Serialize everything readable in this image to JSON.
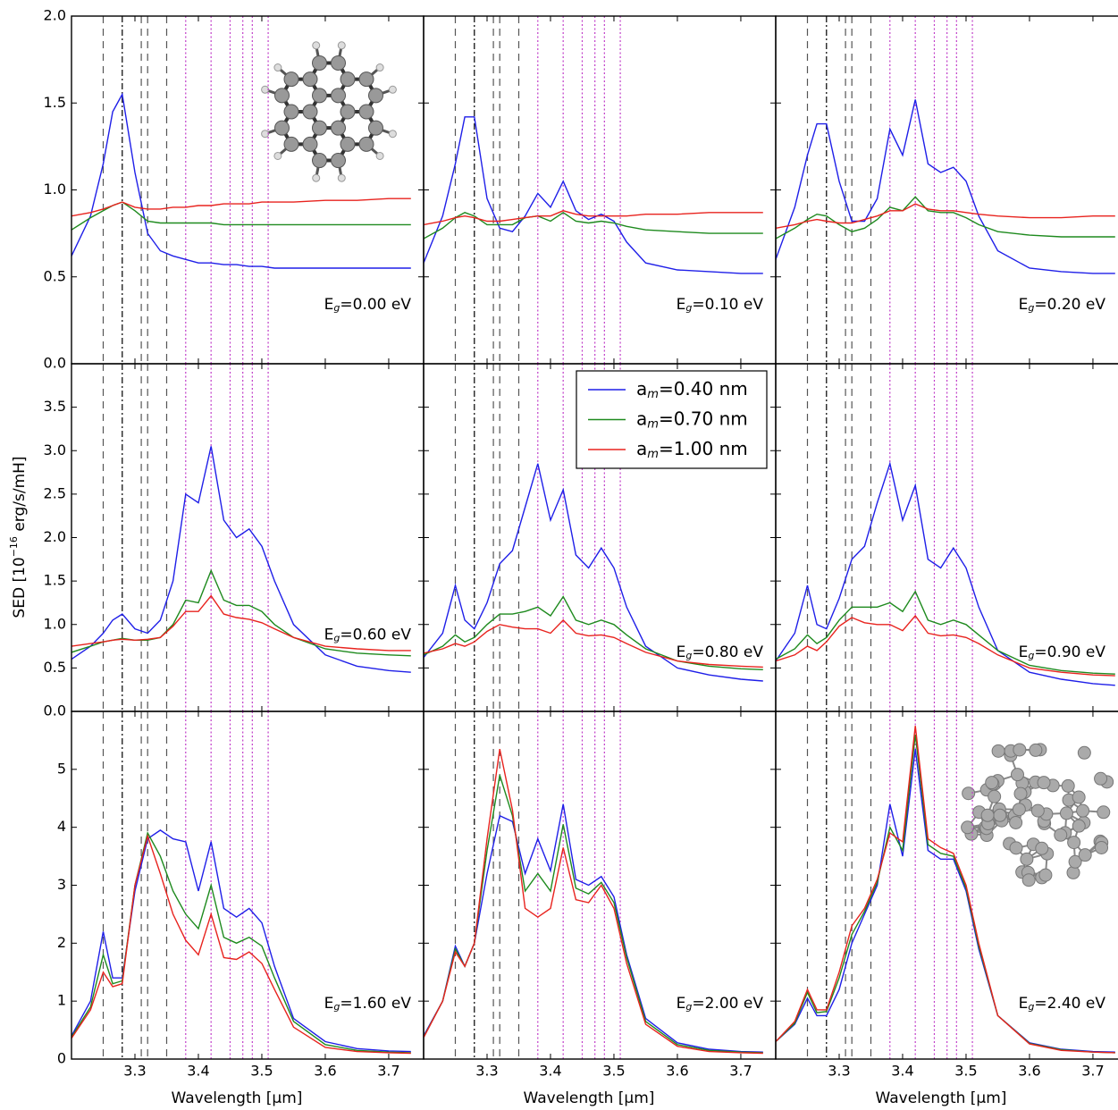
{
  "chart_data": {
    "type": "line",
    "x_label": "Wavelength [μm]",
    "y_label": [
      "SED [10",
      "−16",
      " erg/s/mH]"
    ],
    "xlim": [
      3.2,
      3.755
    ],
    "xticks": [
      3.3,
      3.4,
      3.5,
      3.6,
      3.7
    ],
    "x": [
      3.2,
      3.23,
      3.25,
      3.265,
      3.28,
      3.3,
      3.32,
      3.34,
      3.36,
      3.38,
      3.4,
      3.42,
      3.44,
      3.46,
      3.48,
      3.5,
      3.52,
      3.55,
      3.6,
      3.65,
      3.7,
      3.735
    ],
    "series": [
      {
        "name": [
          "a",
          "m",
          "=0.40 nm"
        ],
        "color": "#1f1fe8"
      },
      {
        "name": [
          "a",
          "m",
          "=0.70 nm"
        ],
        "color": "#1e8a1e"
      },
      {
        "name": [
          "a",
          "m",
          "=1.00 nm"
        ],
        "color": "#e8231e"
      }
    ],
    "legend_panel": 4,
    "vlines": [
      {
        "x": [
          3.25,
          3.31,
          3.32,
          3.35
        ],
        "style": "dashed",
        "color": "#555555"
      },
      {
        "x": [
          3.28
        ],
        "style": "dashdot",
        "color": "#000000"
      },
      {
        "x": [
          3.38,
          3.42,
          3.45,
          3.47,
          3.485,
          3.51
        ],
        "style": "dotted",
        "color": "#c03cc8"
      }
    ],
    "panels": [
      {
        "label": [
          "E",
          "g",
          "=0.00 eV"
        ],
        "ylim": [
          0,
          2
        ],
        "yticks": [
          {
            "value": 0,
            "label": "0.0"
          },
          0.5,
          {
            "value": 1,
            "label": "1.0"
          },
          1.5,
          {
            "value": 2,
            "label": "2.0"
          }
        ],
        "series": [
          {
            "values": [
              0.62,
              0.85,
              1.15,
              1.45,
              1.55,
              1.1,
              0.75,
              0.65,
              0.62,
              0.6,
              0.58,
              0.58,
              0.57,
              0.57,
              0.56,
              0.56,
              0.55,
              0.55,
              0.55,
              0.55,
              0.55,
              0.55
            ]
          },
          {
            "values": [
              0.77,
              0.84,
              0.88,
              0.91,
              0.93,
              0.88,
              0.82,
              0.81,
              0.81,
              0.81,
              0.81,
              0.81,
              0.8,
              0.8,
              0.8,
              0.8,
              0.8,
              0.8,
              0.8,
              0.8,
              0.8,
              0.8
            ]
          },
          {
            "values": [
              0.85,
              0.87,
              0.89,
              0.91,
              0.93,
              0.9,
              0.89,
              0.89,
              0.9,
              0.9,
              0.91,
              0.91,
              0.92,
              0.92,
              0.92,
              0.93,
              0.93,
              0.93,
              0.94,
              0.94,
              0.95,
              0.95
            ]
          }
        ]
      },
      {
        "label": [
          "E",
          "g",
          "=0.10 eV"
        ],
        "ylim": [
          0,
          2
        ],
        "yticks": [
          {
            "value": 0,
            "label": "0.0"
          },
          0.5,
          {
            "value": 1,
            "label": "1.0"
          },
          1.5,
          {
            "value": 2,
            "label": "2.0"
          }
        ],
        "series": [
          {
            "values": [
              0.58,
              0.85,
              1.15,
              1.42,
              1.42,
              0.95,
              0.78,
              0.76,
              0.85,
              0.98,
              0.9,
              1.05,
              0.88,
              0.83,
              0.86,
              0.82,
              0.7,
              0.58,
              0.54,
              0.53,
              0.52,
              0.52
            ]
          },
          {
            "values": [
              0.72,
              0.78,
              0.84,
              0.87,
              0.85,
              0.8,
              0.8,
              0.8,
              0.84,
              0.85,
              0.82,
              0.87,
              0.82,
              0.81,
              0.82,
              0.81,
              0.79,
              0.77,
              0.76,
              0.75,
              0.75,
              0.75
            ]
          },
          {
            "values": [
              0.8,
              0.82,
              0.84,
              0.85,
              0.84,
              0.82,
              0.82,
              0.83,
              0.84,
              0.85,
              0.85,
              0.88,
              0.86,
              0.85,
              0.85,
              0.85,
              0.85,
              0.86,
              0.86,
              0.87,
              0.87,
              0.87
            ]
          }
        ]
      },
      {
        "label": [
          "E",
          "g",
          "=0.20 eV"
        ],
        "ylim": [
          0,
          2
        ],
        "yticks": [
          {
            "value": 0,
            "label": "0.0"
          },
          0.5,
          {
            "value": 1,
            "label": "1.0"
          },
          1.5,
          {
            "value": 2,
            "label": "2.0"
          }
        ],
        "series": [
          {
            "values": [
              0.6,
              0.9,
              1.2,
              1.38,
              1.38,
              1.05,
              0.82,
              0.82,
              0.95,
              1.35,
              1.2,
              1.52,
              1.15,
              1.1,
              1.13,
              1.05,
              0.85,
              0.65,
              0.55,
              0.53,
              0.52,
              0.52
            ]
          },
          {
            "values": [
              0.72,
              0.78,
              0.83,
              0.86,
              0.85,
              0.8,
              0.76,
              0.78,
              0.83,
              0.9,
              0.88,
              0.96,
              0.88,
              0.87,
              0.87,
              0.84,
              0.8,
              0.76,
              0.74,
              0.73,
              0.73,
              0.73
            ]
          },
          {
            "values": [
              0.78,
              0.8,
              0.82,
              0.83,
              0.82,
              0.81,
              0.81,
              0.83,
              0.85,
              0.88,
              0.88,
              0.92,
              0.89,
              0.88,
              0.88,
              0.87,
              0.86,
              0.85,
              0.84,
              0.84,
              0.85,
              0.85
            ]
          }
        ]
      },
      {
        "label": [
          "E",
          "g",
          "=0.60 eV"
        ],
        "ylim": [
          0,
          4
        ],
        "yticks": [
          {
            "value": 0,
            "label": "0.0"
          },
          0.5,
          {
            "value": 1,
            "label": "1.0"
          },
          1.5,
          {
            "value": 2,
            "label": "2.0"
          },
          2.5,
          {
            "value": 3,
            "label": "3.0"
          },
          3.5
        ],
        "series": [
          {
            "values": [
              0.6,
              0.75,
              0.9,
              1.05,
              1.12,
              0.95,
              0.9,
              1.05,
              1.5,
              2.5,
              2.4,
              3.05,
              2.2,
              2.0,
              2.1,
              1.9,
              1.5,
              1.0,
              0.65,
              0.52,
              0.47,
              0.45
            ]
          },
          {
            "values": [
              0.68,
              0.75,
              0.8,
              0.82,
              0.84,
              0.82,
              0.82,
              0.85,
              1.0,
              1.28,
              1.25,
              1.62,
              1.28,
              1.22,
              1.22,
              1.15,
              1.0,
              0.85,
              0.72,
              0.67,
              0.65,
              0.64
            ]
          },
          {
            "values": [
              0.75,
              0.78,
              0.8,
              0.82,
              0.83,
              0.82,
              0.83,
              0.85,
              0.98,
              1.15,
              1.15,
              1.33,
              1.12,
              1.08,
              1.06,
              1.02,
              0.95,
              0.85,
              0.75,
              0.72,
              0.7,
              0.7
            ]
          }
        ]
      },
      {
        "label": [
          "E",
          "g",
          "=0.80 eV"
        ],
        "ylim": [
          0,
          4
        ],
        "yticks": [
          {
            "value": 0,
            "label": "0.0"
          },
          0.5,
          {
            "value": 1,
            "label": "1.0"
          },
          1.5,
          {
            "value": 2,
            "label": "2.0"
          },
          2.5,
          {
            "value": 3,
            "label": "3.0"
          },
          3.5
        ],
        "series": [
          {
            "values": [
              0.62,
              0.9,
              1.45,
              1.05,
              0.95,
              1.25,
              1.7,
              1.85,
              2.35,
              2.85,
              2.2,
              2.55,
              1.8,
              1.65,
              1.88,
              1.65,
              1.2,
              0.75,
              0.5,
              0.42,
              0.37,
              0.35
            ]
          },
          {
            "values": [
              0.65,
              0.75,
              0.88,
              0.8,
              0.85,
              1.0,
              1.12,
              1.12,
              1.15,
              1.2,
              1.1,
              1.32,
              1.05,
              1.0,
              1.05,
              1.0,
              0.88,
              0.72,
              0.58,
              0.52,
              0.49,
              0.48
            ]
          },
          {
            "values": [
              0.67,
              0.72,
              0.78,
              0.75,
              0.8,
              0.92,
              1.0,
              0.97,
              0.95,
              0.95,
              0.9,
              1.05,
              0.9,
              0.87,
              0.88,
              0.85,
              0.78,
              0.68,
              0.58,
              0.54,
              0.52,
              0.51
            ]
          }
        ]
      },
      {
        "label": [
          "E",
          "g",
          "=0.90 eV"
        ],
        "ylim": [
          0,
          4
        ],
        "yticks": [
          {
            "value": 0,
            "label": "0.0"
          },
          0.5,
          {
            "value": 1,
            "label": "1.0"
          },
          1.5,
          {
            "value": 2,
            "label": "2.0"
          },
          2.5,
          {
            "value": 3,
            "label": "3.0"
          },
          3.5
        ],
        "series": [
          {
            "values": [
              0.58,
              0.9,
              1.45,
              1.0,
              0.95,
              1.3,
              1.75,
              1.9,
              2.4,
              2.85,
              2.2,
              2.6,
              1.75,
              1.65,
              1.88,
              1.65,
              1.2,
              0.7,
              0.45,
              0.37,
              0.32,
              0.3
            ]
          },
          {
            "values": [
              0.6,
              0.72,
              0.88,
              0.78,
              0.85,
              1.05,
              1.2,
              1.2,
              1.2,
              1.25,
              1.15,
              1.38,
              1.05,
              1.0,
              1.05,
              1.0,
              0.88,
              0.7,
              0.53,
              0.47,
              0.44,
              0.43
            ]
          },
          {
            "values": [
              0.58,
              0.65,
              0.75,
              0.7,
              0.8,
              0.98,
              1.08,
              1.02,
              1.0,
              1.0,
              0.93,
              1.1,
              0.9,
              0.87,
              0.88,
              0.85,
              0.78,
              0.65,
              0.5,
              0.45,
              0.42,
              0.41
            ]
          }
        ]
      },
      {
        "label": [
          "E",
          "g",
          "=1.60 eV"
        ],
        "ylim": [
          0,
          6
        ],
        "yticks": [
          0,
          1,
          2,
          3,
          4,
          5
        ],
        "series": [
          {
            "values": [
              0.4,
              1.0,
              2.2,
              1.4,
              1.4,
              2.9,
              3.8,
              3.95,
              3.8,
              3.75,
              2.9,
              3.75,
              2.6,
              2.45,
              2.6,
              2.35,
              1.6,
              0.7,
              0.3,
              0.18,
              0.14,
              0.13
            ]
          },
          {
            "values": [
              0.38,
              0.9,
              1.8,
              1.3,
              1.35,
              3.0,
              3.9,
              3.5,
              2.9,
              2.5,
              2.25,
              3.0,
              2.1,
              2.0,
              2.1,
              1.95,
              1.4,
              0.65,
              0.25,
              0.15,
              0.12,
              0.11
            ]
          },
          {
            "values": [
              0.36,
              0.85,
              1.5,
              1.25,
              1.3,
              3.0,
              3.85,
              3.2,
              2.5,
              2.05,
              1.8,
              2.5,
              1.75,
              1.72,
              1.85,
              1.65,
              1.2,
              0.55,
              0.2,
              0.13,
              0.11,
              0.1
            ]
          }
        ]
      },
      {
        "label": [
          "E",
          "g",
          "=2.00 eV"
        ],
        "ylim": [
          0,
          6
        ],
        "yticks": [
          0,
          1,
          2,
          3,
          4,
          5
        ],
        "series": [
          {
            "values": [
              0.4,
              1.0,
              1.95,
              1.6,
              2.0,
              3.2,
              4.2,
              4.1,
              3.2,
              3.8,
              3.25,
              4.4,
              3.1,
              3.0,
              3.15,
              2.8,
              1.8,
              0.7,
              0.28,
              0.17,
              0.13,
              0.12
            ]
          },
          {
            "values": [
              0.38,
              1.0,
              1.9,
              1.6,
              2.0,
              3.6,
              4.9,
              4.2,
              2.9,
              3.2,
              2.9,
              4.05,
              2.95,
              2.85,
              3.05,
              2.7,
              1.75,
              0.65,
              0.25,
              0.15,
              0.12,
              0.11
            ]
          },
          {
            "values": [
              0.37,
              1.0,
              1.85,
              1.6,
              2.0,
              3.8,
              5.35,
              4.3,
              2.6,
              2.45,
              2.6,
              3.65,
              2.75,
              2.7,
              3.0,
              2.6,
              1.65,
              0.6,
              0.22,
              0.13,
              0.11,
              0.1
            ]
          }
        ]
      },
      {
        "label": [
          "E",
          "g",
          "=2.40 eV"
        ],
        "ylim": [
          0,
          6
        ],
        "yticks": [
          0,
          1,
          2,
          3,
          4,
          5
        ],
        "series": [
          {
            "values": [
              0.3,
              0.6,
              1.05,
              0.75,
              0.75,
              1.2,
              2.0,
              2.5,
              3.0,
              4.4,
              3.5,
              5.35,
              3.6,
              3.45,
              3.45,
              2.9,
              1.9,
              0.75,
              0.28,
              0.17,
              0.13,
              0.12
            ]
          },
          {
            "values": [
              0.3,
              0.62,
              1.15,
              0.8,
              0.82,
              1.4,
              2.15,
              2.55,
              3.05,
              4.0,
              3.6,
              5.6,
              3.7,
              3.55,
              3.5,
              2.95,
              1.95,
              0.75,
              0.27,
              0.16,
              0.12,
              0.11
            ]
          },
          {
            "values": [
              0.3,
              0.65,
              1.2,
              0.85,
              0.85,
              1.5,
              2.3,
              2.6,
              3.1,
              3.9,
              3.75,
              5.75,
              3.8,
              3.65,
              3.55,
              3.0,
              2.0,
              0.75,
              0.26,
              0.15,
              0.12,
              0.11
            ]
          }
        ]
      }
    ]
  }
}
